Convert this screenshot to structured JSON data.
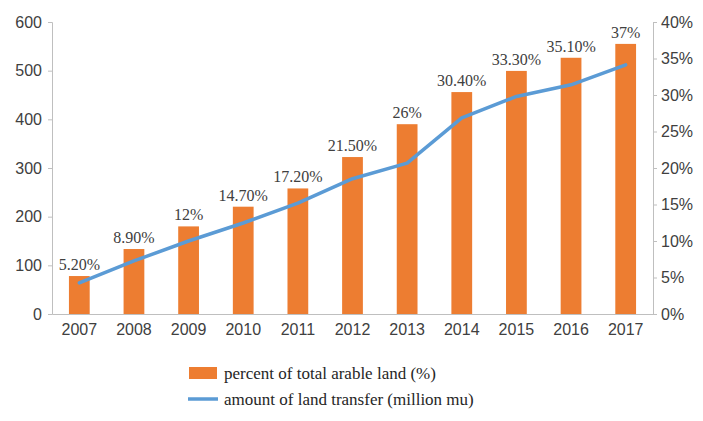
{
  "chart_data": {
    "type": "bar",
    "categories": [
      "2007",
      "2008",
      "2009",
      "2010",
      "2011",
      "2012",
      "2013",
      "2014",
      "2015",
      "2016",
      "2017"
    ],
    "series": [
      {
        "name": "percent of total arable land (%)",
        "type": "bar",
        "color": "#ED7D31",
        "axis": "y2",
        "values": [
          5.2,
          8.9,
          12,
          14.7,
          17.2,
          21.5,
          26,
          30.4,
          33.3,
          35.1,
          37
        ],
        "value_labels": [
          "5.20%",
          "8.90%",
          "12%",
          "14.70%",
          "17.20%",
          "21.50%",
          "26%",
          "30.40%",
          "33.30%",
          "35.10%",
          "37%"
        ]
      },
      {
        "name": "amount of land transfer (million mu)",
        "type": "line",
        "color": "#5B9BD5",
        "values": [
          64,
          109,
          150,
          187,
          228,
          278,
          310,
          403,
          447,
          471,
          512
        ]
      }
    ],
    "ylim": [
      0,
      600
    ],
    "yticks": [
      0,
      100,
      200,
      300,
      400,
      500,
      600
    ],
    "y2lim": [
      0,
      40
    ],
    "y2ticks": [
      {
        "value": 0,
        "label": "0%"
      },
      {
        "value": 5,
        "label": "5%"
      },
      {
        "value": 10,
        "label": "10%"
      },
      {
        "value": 15,
        "label": "15%"
      },
      {
        "value": 20,
        "label": "20%"
      },
      {
        "value": 25,
        "label": "25%"
      },
      {
        "value": 30,
        "label": "30%"
      },
      {
        "value": 35,
        "label": "35%"
      },
      {
        "value": 40,
        "label": "40%"
      }
    ],
    "data_labels": true,
    "grid": false,
    "legend": "bottom"
  }
}
